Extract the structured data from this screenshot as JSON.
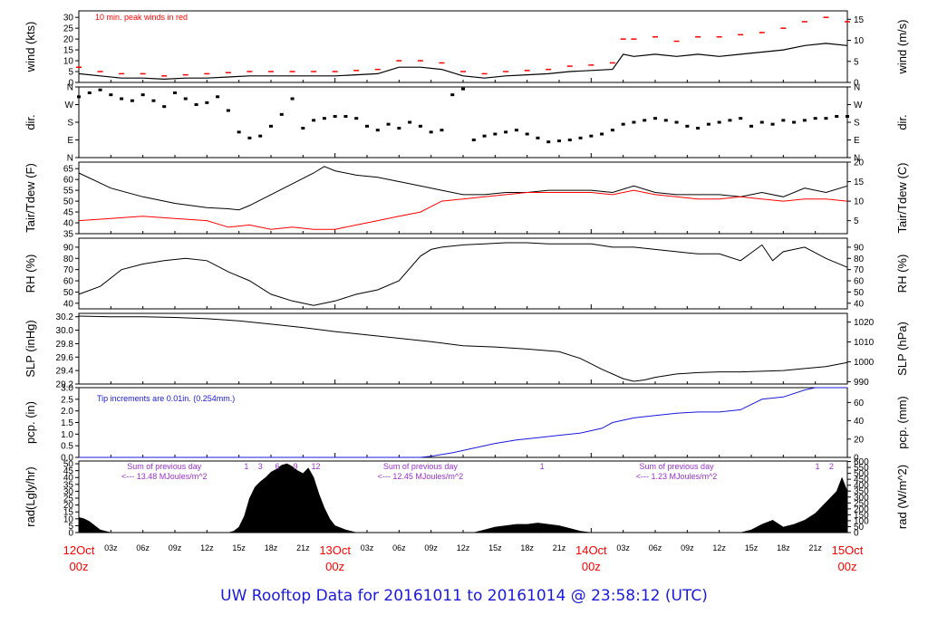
{
  "title": "UW Rooftop Data for 20161011  to  20161014 @ 23:58:12  (UTC)",
  "colors": {
    "frame": "#000000",
    "wind_peak": "#ff0000",
    "dewpoint": "#ff0000",
    "precip": "#1a1adc",
    "annotation": "#9b30d0",
    "date_label": "#ff0000",
    "title": "#1a1adc"
  },
  "x_axis": {
    "unit_note": "hours since 12Oct 00z",
    "range": [
      0,
      72
    ],
    "hour_ticks": [
      {
        "x": 3,
        "label": "03z"
      },
      {
        "x": 6,
        "label": "06z"
      },
      {
        "x": 9,
        "label": "09z"
      },
      {
        "x": 12,
        "label": "12z"
      },
      {
        "x": 15,
        "label": "15z"
      },
      {
        "x": 18,
        "label": "18z"
      },
      {
        "x": 21,
        "label": "21z"
      },
      {
        "x": 27,
        "label": "03z"
      },
      {
        "x": 30,
        "label": "06z"
      },
      {
        "x": 33,
        "label": "09z"
      },
      {
        "x": 36,
        "label": "12z"
      },
      {
        "x": 39,
        "label": "15z"
      },
      {
        "x": 42,
        "label": "18z"
      },
      {
        "x": 45,
        "label": "21z"
      },
      {
        "x": 51,
        "label": "03z"
      },
      {
        "x": 54,
        "label": "06z"
      },
      {
        "x": 57,
        "label": "09z"
      },
      {
        "x": 60,
        "label": "12z"
      },
      {
        "x": 63,
        "label": "15z"
      },
      {
        "x": 66,
        "label": "18z"
      },
      {
        "x": 69,
        "label": "21z"
      }
    ],
    "day_labels": [
      {
        "x": 0,
        "date": "12Oct",
        "hour": "00z"
      },
      {
        "x": 24,
        "date": "13Oct",
        "hour": "00z"
      },
      {
        "x": 48,
        "date": "14Oct",
        "hour": "00z"
      },
      {
        "x": 72,
        "date": "15Oct",
        "hour": "00z"
      }
    ]
  },
  "chart_data": [
    {
      "type": "line",
      "id": "wind",
      "ylabel_left": "wind (kts)",
      "ylabel_right": "wind (m/s)",
      "ylim": [
        0,
        33
      ],
      "left_ticks": [
        0,
        5,
        10,
        15,
        20,
        25,
        30
      ],
      "right_ylim": [
        0,
        17
      ],
      "right_ticks": [
        0,
        5,
        10,
        15
      ],
      "annotation": "10 min. peak winds in red",
      "series": [
        {
          "name": "wind",
          "x": [
            0,
            2,
            4,
            6,
            8,
            10,
            12,
            14,
            16,
            18,
            20,
            22,
            24,
            26,
            28,
            30,
            32,
            34,
            36,
            38,
            40,
            42,
            44,
            46,
            48,
            50,
            51,
            52,
            54,
            56,
            58,
            60,
            62,
            64,
            66,
            68,
            70,
            72
          ],
          "y": [
            4,
            3,
            2,
            2,
            1.5,
            2,
            2,
            2.5,
            3,
            3,
            3,
            3,
            3,
            3.5,
            4,
            7,
            7,
            6,
            3,
            2,
            3,
            3.5,
            4,
            5,
            5.5,
            6,
            13,
            12,
            13,
            12,
            13,
            12,
            13,
            14,
            15,
            17,
            18,
            17
          ]
        },
        {
          "name": "10 min. peak",
          "x": [
            0,
            2,
            4,
            6,
            8,
            10,
            12,
            14,
            16,
            18,
            20,
            22,
            24,
            26,
            28,
            30,
            32,
            34,
            36,
            38,
            40,
            42,
            44,
            46,
            48,
            50,
            51,
            52,
            54,
            56,
            58,
            60,
            62,
            64,
            66,
            68,
            70,
            72
          ],
          "y": [
            7,
            5,
            4,
            4,
            3,
            3.5,
            4,
            4.5,
            5,
            5,
            5,
            5,
            5,
            5.5,
            6,
            10,
            10,
            9,
            5,
            4,
            5,
            5.5,
            6,
            7.5,
            8,
            9,
            20,
            20,
            21,
            19,
            21,
            21,
            22,
            23,
            25,
            28,
            30,
            28
          ]
        }
      ]
    },
    {
      "type": "scatter",
      "id": "dir",
      "ylabel_left": "dir.",
      "ylabel_right": "dir.",
      "ylim": [
        0,
        360
      ],
      "tick_labels": [
        "N",
        "E",
        "S",
        "W",
        "N"
      ],
      "x": [
        0,
        1,
        2,
        3,
        4,
        5,
        6,
        7,
        8,
        9,
        10,
        11,
        12,
        13,
        14,
        15,
        16,
        17,
        18,
        19,
        20,
        21,
        22,
        23,
        24,
        25,
        26,
        27,
        28,
        29,
        30,
        31,
        32,
        33,
        34,
        35,
        36,
        37,
        38,
        39,
        40,
        41,
        42,
        43,
        44,
        45,
        46,
        47,
        48,
        49,
        50,
        51,
        52,
        53,
        54,
        55,
        56,
        57,
        58,
        59,
        60,
        61,
        62,
        63,
        64,
        65,
        66,
        67,
        68,
        69,
        70,
        71,
        72
      ],
      "y": [
        310,
        330,
        345,
        320,
        300,
        290,
        320,
        290,
        260,
        330,
        300,
        270,
        280,
        310,
        240,
        130,
        100,
        110,
        160,
        220,
        300,
        150,
        190,
        200,
        210,
        210,
        200,
        160,
        140,
        170,
        150,
        180,
        160,
        130,
        140,
        320,
        350,
        90,
        110,
        120,
        130,
        140,
        120,
        100,
        80,
        85,
        90,
        100,
        110,
        120,
        140,
        170,
        180,
        190,
        200,
        190,
        180,
        160,
        150,
        170,
        180,
        190,
        200,
        160,
        180,
        170,
        190,
        180,
        190,
        200,
        200,
        210,
        210
      ]
    },
    {
      "type": "line",
      "id": "temp",
      "ylabel_left": "Tair/Tdew (F)",
      "ylabel_right": "Tair/Tdew (C)",
      "ylim": [
        35,
        68
      ],
      "left_ticks": [
        35,
        40,
        45,
        50,
        55,
        60,
        65
      ],
      "right_ylim": [
        1.67,
        20
      ],
      "right_ticks": [
        5,
        10,
        15,
        20
      ],
      "series": [
        {
          "name": "Tair",
          "x": [
            0,
            3,
            6,
            9,
            12,
            14,
            15,
            16,
            18,
            20,
            22,
            23,
            24,
            26,
            28,
            30,
            32,
            34,
            36,
            38,
            40,
            42,
            44,
            46,
            48,
            50,
            52,
            54,
            56,
            58,
            60,
            62,
            64,
            66,
            68,
            70,
            72
          ],
          "y": [
            63,
            56,
            52,
            49,
            47,
            46.5,
            46,
            48,
            53,
            58,
            63,
            66,
            64,
            62,
            61,
            59,
            57,
            55,
            53,
            53,
            54,
            54,
            55,
            55,
            55,
            54,
            57,
            54,
            53,
            53,
            53,
            52,
            54,
            52,
            56,
            54,
            57
          ]
        },
        {
          "name": "Tdew",
          "x": [
            0,
            3,
            6,
            9,
            12,
            14,
            16,
            18,
            20,
            22,
            24,
            26,
            28,
            30,
            32,
            34,
            36,
            38,
            40,
            42,
            44,
            46,
            48,
            50,
            52,
            54,
            56,
            58,
            60,
            62,
            64,
            66,
            68,
            70,
            72
          ],
          "y": [
            41,
            42,
            43,
            42,
            41,
            38,
            39,
            37,
            38,
            37,
            37,
            39,
            41,
            43,
            45,
            50,
            51,
            52,
            53,
            54,
            54,
            54,
            54,
            53,
            55,
            53,
            52,
            51,
            51,
            52,
            51,
            50,
            51,
            51,
            50
          ]
        }
      ]
    },
    {
      "type": "line",
      "id": "rh",
      "ylabel_left": "RH (%)",
      "ylabel_right": "RH (%)",
      "ylim": [
        35,
        98
      ],
      "left_ticks": [
        40,
        50,
        60,
        70,
        80,
        90
      ],
      "right_ticks": [
        40,
        50,
        60,
        70,
        80,
        90
      ],
      "series": [
        {
          "name": "RH",
          "x": [
            0,
            2,
            4,
            6,
            8,
            10,
            12,
            14,
            16,
            18,
            20,
            22,
            24,
            26,
            28,
            30,
            32,
            33,
            34,
            36,
            38,
            40,
            42,
            44,
            46,
            48,
            50,
            52,
            54,
            56,
            58,
            60,
            62,
            64,
            65,
            66,
            68,
            70,
            72
          ],
          "y": [
            48,
            55,
            70,
            75,
            78,
            80,
            78,
            68,
            60,
            48,
            42,
            38,
            42,
            48,
            52,
            60,
            82,
            88,
            90,
            92,
            93,
            94,
            94,
            93,
            93,
            93,
            90,
            90,
            88,
            86,
            84,
            84,
            78,
            92,
            78,
            86,
            90,
            80,
            72
          ]
        }
      ]
    },
    {
      "type": "line",
      "id": "slp",
      "ylabel_left": "SLP (inHg)",
      "ylabel_right": "SLP (hPa)",
      "ylim": [
        29.2,
        30.25
      ],
      "left_ticks": [
        29.2,
        29.4,
        29.6,
        29.8,
        30.0,
        30.2
      ],
      "right_ylim": [
        988.8,
        1024.4
      ],
      "right_ticks": [
        990,
        1000,
        1010,
        1020
      ],
      "series": [
        {
          "name": "SLP",
          "x": [
            0,
            3,
            6,
            9,
            12,
            15,
            18,
            21,
            24,
            27,
            30,
            33,
            36,
            39,
            42,
            45,
            47,
            49,
            51,
            52,
            53,
            54,
            56,
            58,
            60,
            62,
            64,
            66,
            68,
            70,
            72
          ],
          "y": [
            30.21,
            30.2,
            30.2,
            30.19,
            30.17,
            30.14,
            30.09,
            30.04,
            29.98,
            29.93,
            29.88,
            29.83,
            29.77,
            29.75,
            29.72,
            29.68,
            29.58,
            29.42,
            29.28,
            29.24,
            29.26,
            29.3,
            29.35,
            29.37,
            29.38,
            29.38,
            29.39,
            29.4,
            29.43,
            29.46,
            29.52
          ]
        }
      ]
    },
    {
      "type": "line",
      "id": "pcp",
      "ylabel_left": "pcp. (in)",
      "ylabel_right": "pcp. (mm)",
      "ylim": [
        0,
        3.0
      ],
      "left_ticks": [
        0,
        0.5,
        1.0,
        1.5,
        2.0,
        2.5,
        3.0
      ],
      "right_ylim": [
        0,
        76.2
      ],
      "right_ticks": [
        0,
        20,
        40,
        60
      ],
      "annotation": "Tip increments are 0.01in. (0.254mm.)",
      "series": [
        {
          "name": "pcp",
          "x": [
            0,
            32,
            33,
            35,
            37,
            39,
            41,
            43,
            45,
            47,
            49,
            50,
            52,
            54,
            56,
            58,
            60,
            62,
            64,
            66,
            68,
            69,
            70,
            72
          ],
          "y": [
            0,
            0,
            0.05,
            0.2,
            0.4,
            0.6,
            0.75,
            0.85,
            0.95,
            1.05,
            1.25,
            1.5,
            1.7,
            1.8,
            1.9,
            1.95,
            1.95,
            2.05,
            2.5,
            2.6,
            2.9,
            3.0,
            3.0,
            3.0
          ]
        }
      ]
    },
    {
      "type": "area",
      "id": "rad",
      "ylabel_left": "rad(Lgly/hr)",
      "ylabel_right": "rad (W/m^2)",
      "ylim": [
        0,
        52
      ],
      "left_ticks": [
        0,
        5,
        10,
        15,
        20,
        25,
        30,
        35,
        40,
        45,
        50
      ],
      "right_ylim": [
        0,
        604
      ],
      "right_ticks": [
        0,
        50,
        100,
        150,
        200,
        250,
        300,
        350,
        400,
        450,
        500,
        550,
        600
      ],
      "annotations": [
        {
          "x": 8,
          "line1": "Sum of previous day",
          "line2": "<--- 13.48 MJoules/m^2"
        },
        {
          "x": 32,
          "line1": "Sum of previous day",
          "line2": "<--- 12.45 MJoules/m^2"
        },
        {
          "x": 56,
          "line1": "Sum of previous day",
          "line2": "<--- 1.23 MJoules/m^2"
        }
      ],
      "marker_labels": [
        {
          "x": 15.7,
          "label": "1"
        },
        {
          "x": 17,
          "label": "3"
        },
        {
          "x": 18.6,
          "label": "6"
        },
        {
          "x": 20.3,
          "label": "9"
        },
        {
          "x": 22.2,
          "label": "12"
        },
        {
          "x": 43.4,
          "label": "1"
        },
        {
          "x": 69.2,
          "label": "1"
        },
        {
          "x": 70.5,
          "label": "2"
        }
      ],
      "series": [
        {
          "name": "rad",
          "x": [
            0,
            0.5,
            1,
            1.5,
            2,
            3,
            14,
            14.5,
            15,
            15.5,
            16,
            16.5,
            17,
            17.5,
            18,
            18.5,
            19,
            19.5,
            20,
            20.5,
            21,
            21.5,
            22,
            22.5,
            23,
            23.5,
            24,
            25,
            26,
            37,
            38,
            39,
            40,
            41,
            42,
            43,
            44,
            45,
            46,
            47,
            48,
            62,
            63,
            64,
            65,
            66,
            67,
            68,
            69,
            70,
            71,
            71.5,
            72
          ],
          "y": [
            11,
            10,
            8,
            5,
            2,
            0,
            0,
            1,
            4,
            12,
            25,
            33,
            37,
            40,
            44,
            46,
            49,
            50,
            48,
            45,
            43,
            47,
            40,
            28,
            18,
            10,
            5,
            2,
            0,
            0,
            2,
            4,
            5,
            6,
            6,
            7,
            6,
            5,
            3,
            1,
            0,
            0,
            2,
            6,
            9,
            4,
            6,
            9,
            14,
            22,
            30,
            40,
            30
          ]
        }
      ]
    }
  ]
}
